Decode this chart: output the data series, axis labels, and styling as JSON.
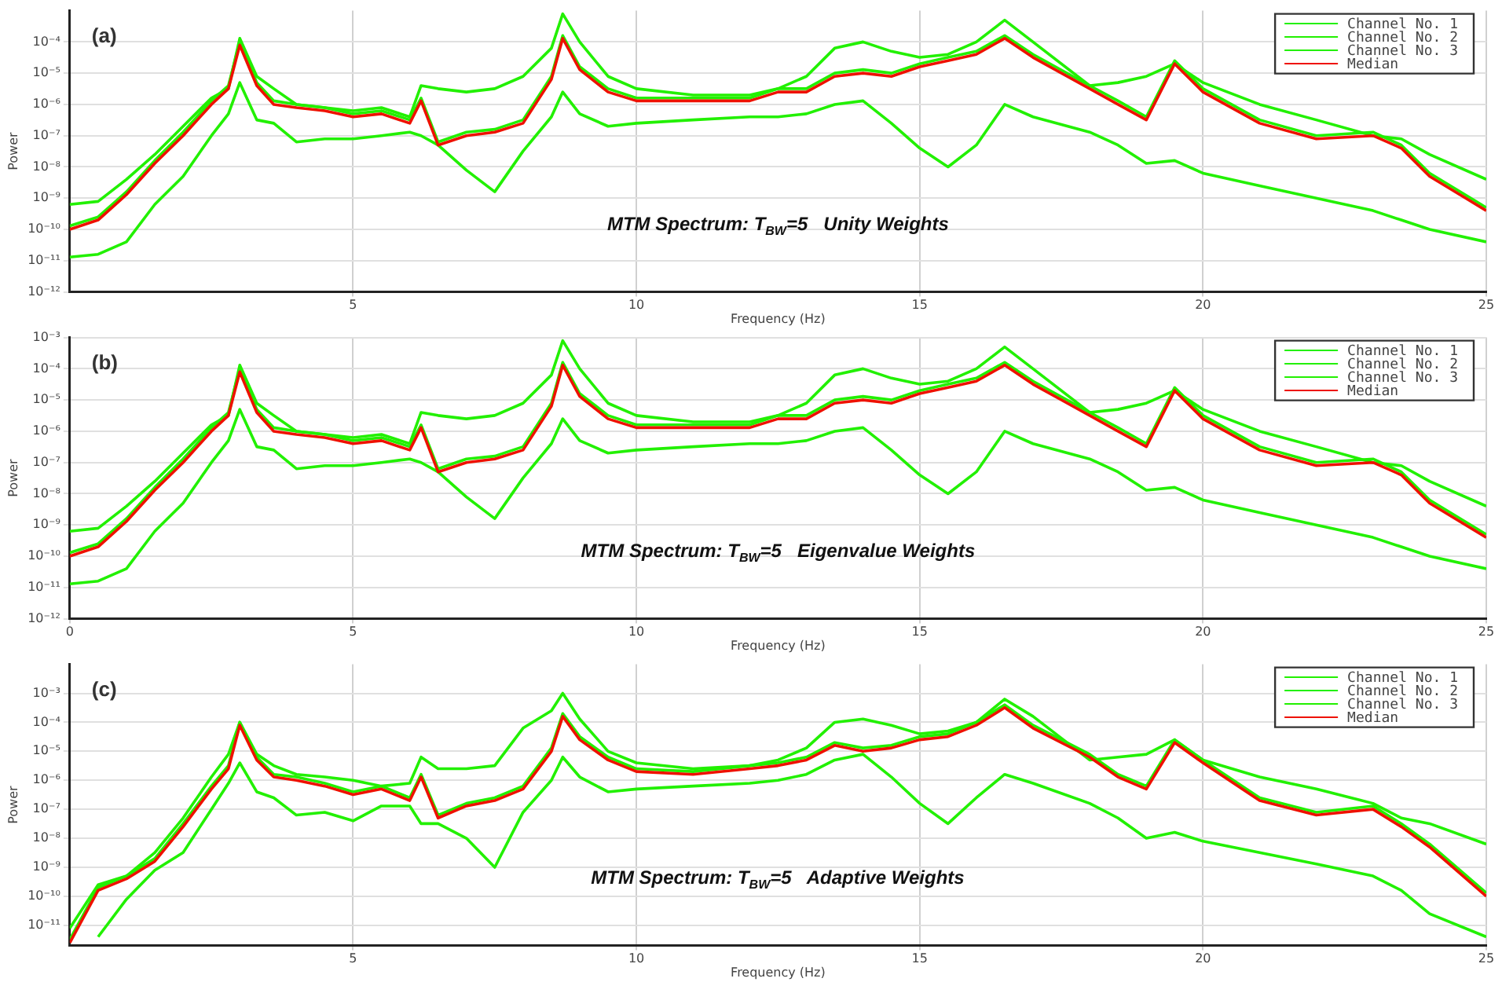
{
  "chart_data": [
    {
      "type": "line",
      "title": "(a)",
      "xlabel": "Frequency (Hz)",
      "ylabel": "Power",
      "annotations": [
        "MTM Spectrum: T$_{BW}$=5   Unity Weights"
      ],
      "log": "y",
      "grid": true,
      "legend": "top right",
      "xlim": [
        0,
        25
      ],
      "xticks": [
        5,
        10,
        15,
        20,
        25
      ],
      "ylim": [
        1e-12,
        0.001
      ],
      "yticks": [
        {
          "value": 1e-12,
          "label": "10⁻¹²"
        },
        {
          "value": 1e-11,
          "label": "10⁻¹¹"
        },
        {
          "value": 1e-10,
          "label": "10⁻¹⁰"
        },
        {
          "value": 1e-09,
          "label": "10⁻⁹"
        },
        {
          "value": 1e-08,
          "label": "10⁻⁸"
        },
        {
          "value": 1e-07,
          "label": "10⁻⁷"
        },
        {
          "value": 1e-06,
          "label": "10⁻⁶"
        },
        {
          "value": 1e-05,
          "label": "10⁻⁵"
        },
        {
          "value": 0.0001,
          "label": "10⁻⁴"
        }
      ],
      "x": [
        0,
        0.5,
        1,
        1.5,
        2,
        2.5,
        2.8,
        3,
        3.3,
        3.6,
        4,
        4.5,
        5,
        5.5,
        6,
        6.2,
        6.5,
        7,
        7.5,
        8,
        8.5,
        8.7,
        9,
        9.5,
        10,
        11,
        12,
        12.5,
        13,
        13.5,
        14,
        14.5,
        15,
        15.5,
        16,
        16.5,
        17,
        18,
        18.5,
        19,
        19.5,
        20,
        21,
        22,
        23,
        23.5,
        24,
        25
      ],
      "series": [
        {
          "name": "Channel No. 1",
          "color": "#22f000",
          "values": [
            6.3e-10,
            7.9e-10,
            4e-09,
            2.5e-08,
            2e-07,
            1.6e-06,
            3.2e-06,
            0.00013,
            7.9e-06,
            3.2e-06,
            1e-06,
            7.9e-07,
            6.3e-07,
            7.9e-07,
            4e-07,
            4e-06,
            3.2e-06,
            2.5e-06,
            3.2e-06,
            7.9e-06,
            6.3e-05,
            0.00079,
            0.0001,
            7.9e-06,
            3.2e-06,
            2e-06,
            2e-06,
            3.2e-06,
            7.9e-06,
            6.3e-05,
            0.0001,
            5e-05,
            3.2e-05,
            4e-05,
            0.0001,
            0.0005,
            0.0001,
            4e-06,
            5e-06,
            7.9e-06,
            2e-05,
            5e-06,
            1e-06,
            3.2e-07,
            1e-07,
            7.9e-08,
            2.5e-08,
            4e-09
          ]
        },
        {
          "name": "Channel No. 2",
          "color": "#22f000",
          "values": [
            1.3e-10,
            2.5e-10,
            1.6e-09,
            1.6e-08,
            1.3e-07,
            1.3e-06,
            4e-06,
            0.0001,
            5e-06,
            1.3e-06,
            1e-06,
            7.9e-07,
            5e-07,
            6.3e-07,
            3.2e-07,
            1.6e-06,
            6.3e-08,
            1.3e-07,
            1.6e-07,
            3.2e-07,
            7.9e-06,
            0.00016,
            1.6e-05,
            3.2e-06,
            1.6e-06,
            1.6e-06,
            1.6e-06,
            3.2e-06,
            3.2e-06,
            1e-05,
            1.3e-05,
            1e-05,
            2e-05,
            3.2e-05,
            5e-05,
            0.00016,
            4e-05,
            4e-06,
            1.3e-06,
            4e-07,
            2.5e-05,
            3.2e-06,
            3.2e-07,
            1e-07,
            1.3e-07,
            5e-08,
            6.3e-09,
            5e-10
          ]
        },
        {
          "name": "Channel No. 3",
          "color": "#22f000",
          "values": [
            1.3e-11,
            1.6e-11,
            4e-11,
            6.3e-10,
            5e-09,
            1e-07,
            5e-07,
            5e-06,
            3.2e-07,
            2.5e-07,
            6.3e-08,
            7.9e-08,
            7.9e-08,
            1e-07,
            1.3e-07,
            1e-07,
            5e-08,
            7.9e-09,
            1.6e-09,
            3.2e-08,
            4e-07,
            2.5e-06,
            5e-07,
            2e-07,
            2.5e-07,
            3.2e-07,
            4e-07,
            4e-07,
            5e-07,
            1e-06,
            1.3e-06,
            2.5e-07,
            4e-08,
            1e-08,
            5e-08,
            1e-06,
            4e-07,
            1.3e-07,
            5e-08,
            1.3e-08,
            1.6e-08,
            6.3e-09,
            2.5e-09,
            1e-09,
            4e-10,
            2e-10,
            1e-10,
            4e-11
          ]
        },
        {
          "name": "Median",
          "color": "#ee1100",
          "values": [
            1e-10,
            2e-10,
            1.3e-09,
            1.3e-08,
            1e-07,
            1e-06,
            3.2e-06,
            7.9e-05,
            4e-06,
            1e-06,
            7.9e-07,
            6.3e-07,
            4e-07,
            5e-07,
            2.5e-07,
            1.3e-06,
            5e-08,
            1e-07,
            1.3e-07,
            2.5e-07,
            6.3e-06,
            0.00013,
            1.3e-05,
            2.5e-06,
            1.3e-06,
            1.3e-06,
            1.3e-06,
            2.5e-06,
            2.5e-06,
            7.9e-06,
            1e-05,
            7.9e-06,
            1.6e-05,
            2.5e-05,
            4e-05,
            0.00013,
            3.2e-05,
            3.2e-06,
            1e-06,
            3.2e-07,
            2e-05,
            2.5e-06,
            2.5e-07,
            7.9e-08,
            1e-07,
            4e-08,
            5e-09,
            4e-10
          ]
        }
      ]
    },
    {
      "type": "line",
      "title": "(b)",
      "xlabel": "Frequency (Hz)",
      "ylabel": "Power",
      "annotations": [
        "MTM Spectrum: T$_{BW}$=5   Eigenvalue Weights"
      ],
      "log": "y",
      "grid": true,
      "legend": "top right",
      "xlim": [
        0,
        25
      ],
      "xticks": [
        0,
        5,
        10,
        15,
        20,
        25
      ],
      "ylim": [
        1e-12,
        0.001
      ],
      "yticks": [
        {
          "value": 1e-12,
          "label": "10⁻¹²"
        },
        {
          "value": 1e-11,
          "label": "10⁻¹¹"
        },
        {
          "value": 1e-10,
          "label": "10⁻¹⁰"
        },
        {
          "value": 1e-09,
          "label": "10⁻⁹"
        },
        {
          "value": 1e-08,
          "label": "10⁻⁸"
        },
        {
          "value": 1e-07,
          "label": "10⁻⁷"
        },
        {
          "value": 1e-06,
          "label": "10⁻⁶"
        },
        {
          "value": 1e-05,
          "label": "10⁻⁵"
        },
        {
          "value": 0.0001,
          "label": "10⁻⁴"
        },
        {
          "value": 0.001,
          "label": "10⁻³"
        }
      ],
      "x": [
        0,
        0.5,
        1,
        1.5,
        2,
        2.5,
        2.8,
        3,
        3.3,
        3.6,
        4,
        4.5,
        5,
        5.5,
        6,
        6.2,
        6.5,
        7,
        7.5,
        8,
        8.5,
        8.7,
        9,
        9.5,
        10,
        11,
        12,
        12.5,
        13,
        13.5,
        14,
        14.5,
        15,
        15.5,
        16,
        16.5,
        17,
        18,
        18.5,
        19,
        19.5,
        20,
        21,
        22,
        23,
        23.5,
        24,
        25
      ],
      "series": [
        {
          "name": "Channel No. 1",
          "color": "#22f000",
          "values": [
            6.3e-10,
            7.9e-10,
            4e-09,
            2.5e-08,
            2e-07,
            1.6e-06,
            3.2e-06,
            0.00013,
            7.9e-06,
            3.2e-06,
            1e-06,
            7.9e-07,
            6.3e-07,
            7.9e-07,
            4e-07,
            4e-06,
            3.2e-06,
            2.5e-06,
            3.2e-06,
            7.9e-06,
            6.3e-05,
            0.00079,
            0.0001,
            7.9e-06,
            3.2e-06,
            2e-06,
            2e-06,
            3.2e-06,
            7.9e-06,
            6.3e-05,
            0.0001,
            5e-05,
            3.2e-05,
            4e-05,
            0.0001,
            0.0005,
            0.0001,
            4e-06,
            5e-06,
            7.9e-06,
            2e-05,
            5e-06,
            1e-06,
            3.2e-07,
            1e-07,
            7.9e-08,
            2.5e-08,
            4e-09
          ]
        },
        {
          "name": "Channel No. 2",
          "color": "#22f000",
          "values": [
            1.3e-10,
            2.5e-10,
            1.6e-09,
            1.6e-08,
            1.3e-07,
            1.3e-06,
            4e-06,
            0.0001,
            5e-06,
            1.3e-06,
            1e-06,
            7.9e-07,
            5e-07,
            6.3e-07,
            3.2e-07,
            1.6e-06,
            6.3e-08,
            1.3e-07,
            1.6e-07,
            3.2e-07,
            7.9e-06,
            0.00016,
            1.6e-05,
            3.2e-06,
            1.6e-06,
            1.6e-06,
            1.6e-06,
            3.2e-06,
            3.2e-06,
            1e-05,
            1.3e-05,
            1e-05,
            2e-05,
            3.2e-05,
            5e-05,
            0.00016,
            4e-05,
            4e-06,
            1.3e-06,
            4e-07,
            2.5e-05,
            3.2e-06,
            3.2e-07,
            1e-07,
            1.3e-07,
            5e-08,
            6.3e-09,
            5e-10
          ]
        },
        {
          "name": "Channel No. 3",
          "color": "#22f000",
          "values": [
            1.3e-11,
            1.6e-11,
            4e-11,
            6.3e-10,
            5e-09,
            1e-07,
            5e-07,
            5e-06,
            3.2e-07,
            2.5e-07,
            6.3e-08,
            7.9e-08,
            7.9e-08,
            1e-07,
            1.3e-07,
            1e-07,
            5e-08,
            7.9e-09,
            1.6e-09,
            3.2e-08,
            4e-07,
            2.5e-06,
            5e-07,
            2e-07,
            2.5e-07,
            3.2e-07,
            4e-07,
            4e-07,
            5e-07,
            1e-06,
            1.3e-06,
            2.5e-07,
            4e-08,
            1e-08,
            5e-08,
            1e-06,
            4e-07,
            1.3e-07,
            5e-08,
            1.3e-08,
            1.6e-08,
            6.3e-09,
            2.5e-09,
            1e-09,
            4e-10,
            2e-10,
            1e-10,
            4e-11
          ]
        },
        {
          "name": "Median",
          "color": "#ee1100",
          "values": [
            1e-10,
            2e-10,
            1.3e-09,
            1.3e-08,
            1e-07,
            1e-06,
            3.2e-06,
            7.9e-05,
            4e-06,
            1e-06,
            7.9e-07,
            6.3e-07,
            4e-07,
            5e-07,
            2.5e-07,
            1.3e-06,
            5e-08,
            1e-07,
            1.3e-07,
            2.5e-07,
            6.3e-06,
            0.00013,
            1.3e-05,
            2.5e-06,
            1.3e-06,
            1.3e-06,
            1.3e-06,
            2.5e-06,
            2.5e-06,
            7.9e-06,
            1e-05,
            7.9e-06,
            1.6e-05,
            2.5e-05,
            4e-05,
            0.00013,
            3.2e-05,
            3.2e-06,
            1e-06,
            3.2e-07,
            2e-05,
            2.5e-06,
            2.5e-07,
            7.9e-08,
            1e-07,
            4e-08,
            5e-09,
            4e-10
          ]
        }
      ]
    },
    {
      "type": "line",
      "title": "(c)",
      "xlabel": "Frequency (Hz)",
      "ylabel": "Power",
      "annotations": [
        "MTM Spectrum: T$_{BW}$=5   Adaptive Weights"
      ],
      "log": "y",
      "grid": true,
      "legend": "top right",
      "xlim": [
        0,
        25
      ],
      "xticks": [
        5,
        10,
        15,
        20,
        25
      ],
      "ylim": [
        2e-12,
        0.01
      ],
      "yticks": [
        {
          "value": 1e-11,
          "label": "10⁻¹¹"
        },
        {
          "value": 1e-10,
          "label": "10⁻¹⁰"
        },
        {
          "value": 1e-09,
          "label": "10⁻⁹"
        },
        {
          "value": 1e-08,
          "label": "10⁻⁸"
        },
        {
          "value": 1e-07,
          "label": "10⁻⁷"
        },
        {
          "value": 1e-06,
          "label": "10⁻⁶"
        },
        {
          "value": 1e-05,
          "label": "10⁻⁵"
        },
        {
          "value": 0.0001,
          "label": "10⁻⁴"
        },
        {
          "value": 0.001,
          "label": "10⁻³"
        }
      ],
      "x": [
        0,
        0.5,
        1,
        1.5,
        2,
        2.5,
        2.8,
        3,
        3.3,
        3.6,
        4,
        4.5,
        5,
        5.5,
        6,
        6.2,
        6.5,
        7,
        7.5,
        8,
        8.5,
        8.7,
        9,
        9.5,
        10,
        11,
        12,
        12.5,
        13,
        13.5,
        14,
        14.5,
        15,
        15.5,
        16,
        16.5,
        17,
        18,
        18.5,
        19,
        19.5,
        20,
        21,
        22,
        23,
        23.5,
        24,
        25
      ],
      "series": [
        {
          "name": "Channel No. 1",
          "color": "#22f000",
          "values": [
            7.9e-12,
            2.5e-10,
            5e-10,
            3.2e-09,
            5e-08,
            1.3e-06,
            7.9e-06,
            0.0001,
            7.9e-06,
            3.2e-06,
            1.6e-06,
            1.3e-06,
            1e-06,
            6.3e-07,
            7.9e-07,
            6.3e-06,
            2.5e-06,
            2.5e-06,
            3.2e-06,
            6.3e-05,
            0.00025,
            0.001,
            0.00013,
            1e-05,
            4e-06,
            2.5e-06,
            3.2e-06,
            5e-06,
            1.3e-05,
            0.0001,
            0.00013,
            7.9e-05,
            4e-05,
            5e-05,
            0.0001,
            0.00063,
            0.00016,
            5e-06,
            6.3e-06,
            7.9e-06,
            2.5e-05,
            5e-06,
            1.3e-06,
            5e-07,
            1.6e-07,
            5e-08,
            3.2e-08,
            6.3e-09
          ]
        },
        {
          "name": "Channel No. 2",
          "color": "#22f000",
          "values": [
            3.2e-12,
            2e-10,
            5e-10,
            2e-09,
            3.2e-08,
            6.3e-07,
            3.2e-06,
            0.0001,
            6.3e-06,
            1.6e-06,
            1.3e-06,
            7.9e-07,
            4e-07,
            6.3e-07,
            2.5e-07,
            1.6e-06,
            6.3e-08,
            1.6e-07,
            2.5e-07,
            6.3e-07,
            1.3e-05,
            0.0002,
            3.2e-05,
            6.3e-06,
            2.5e-06,
            2e-06,
            3.2e-06,
            4e-06,
            6.3e-06,
            2e-05,
            1.3e-05,
            1.6e-05,
            3.2e-05,
            4e-05,
            0.0001,
            0.0004,
            7.9e-05,
            7.9e-06,
            1.6e-06,
            6.3e-07,
            2.5e-05,
            5e-06,
            2.5e-07,
            7.9e-08,
            1.3e-07,
            3.2e-08,
            6.3e-09,
            1.3e-10
          ]
        },
        {
          "name": "Channel No. 3",
          "color": "#22f000",
          "values": [
            null,
            4e-12,
            7.9e-11,
            7.9e-10,
            3.2e-09,
            1e-07,
            7.9e-07,
            4e-06,
            4e-07,
            2.5e-07,
            6.3e-08,
            7.9e-08,
            4e-08,
            1.3e-07,
            1.3e-07,
            3.2e-08,
            3.2e-08,
            1e-08,
            1e-09,
            7.9e-08,
            1e-06,
            6.3e-06,
            1.3e-06,
            4e-07,
            5e-07,
            6.3e-07,
            7.9e-07,
            1e-06,
            1.6e-06,
            5e-06,
            7.9e-06,
            1.3e-06,
            1.6e-07,
            3.2e-08,
            2.5e-07,
            1.6e-06,
            7.9e-07,
            1.6e-07,
            5e-08,
            1e-08,
            1.6e-08,
            7.9e-09,
            3.2e-09,
            1.3e-09,
            5e-10,
            1.6e-10,
            2.5e-11,
            4e-12
          ]
        },
        {
          "name": "Median",
          "color": "#ee1100",
          "values": [
            2.5e-12,
            1.6e-10,
            4e-10,
            1.6e-09,
            2.5e-08,
            5e-07,
            2.5e-06,
            7.9e-05,
            5e-06,
            1.3e-06,
            1e-06,
            6.3e-07,
            3.2e-07,
            5e-07,
            2e-07,
            1.3e-06,
            5e-08,
            1.3e-07,
            2e-07,
            5e-07,
            1e-05,
            0.00016,
            2.5e-05,
            5e-06,
            2e-06,
            1.6e-06,
            2.5e-06,
            3.2e-06,
            5e-06,
            1.6e-05,
            1e-05,
            1.3e-05,
            2.5e-05,
            3.2e-05,
            7.9e-05,
            0.00032,
            6.3e-05,
            6.3e-06,
            1.3e-06,
            5e-07,
            2e-05,
            4e-06,
            2e-07,
            6.3e-08,
            1e-07,
            2.5e-08,
            5e-09,
            1e-10
          ]
        }
      ]
    }
  ]
}
